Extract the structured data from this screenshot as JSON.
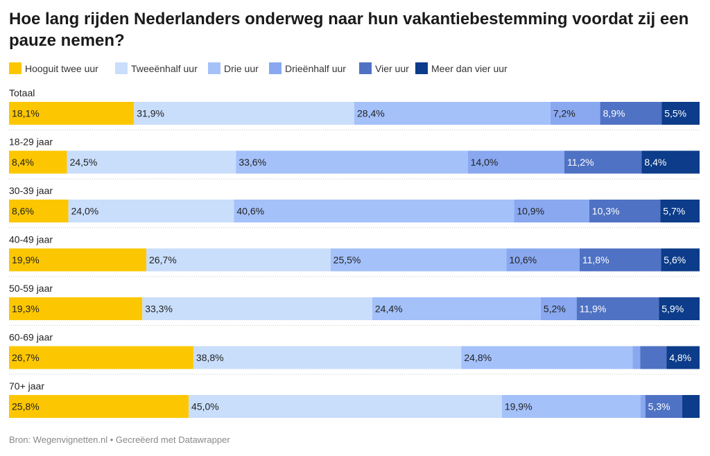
{
  "title": "Hoe lang rijden Nederlanders onderweg naar hun vakantiebestemming voordat zij een pauze nemen?",
  "footer": "Bron: Wegenvignetten.nl • Gecreëerd met Datawrapper",
  "chart_data": {
    "type": "bar",
    "orientation": "horizontal",
    "stacked": true,
    "normalized_100": true,
    "legend_position": "top",
    "categories": [
      "Totaal",
      "18-29 jaar",
      "30-39 jaar",
      "40-49 jaar",
      "50-59 jaar",
      "60-69 jaar",
      "70+ jaar"
    ],
    "series": [
      {
        "name": "Hooguit twee uur",
        "color": "#FCC700",
        "values": [
          18.1,
          8.4,
          8.6,
          19.9,
          19.3,
          26.7,
          25.8
        ],
        "labels": [
          "18,1%",
          "8,4%",
          "8,6%",
          "19,9%",
          "19,3%",
          "26,7%",
          "25,8%"
        ]
      },
      {
        "name": "Tweeënhalf uur",
        "color": "#C9DEFB",
        "values": [
          31.9,
          24.5,
          24.0,
          26.7,
          33.3,
          38.8,
          45.0
        ],
        "labels": [
          "31,9%",
          "24,5%",
          "24,0%",
          "26,7%",
          "33,3%",
          "38,8%",
          "45,0%"
        ]
      },
      {
        "name": "Drie uur",
        "color": "#A4C1FA",
        "values": [
          28.4,
          33.6,
          40.6,
          25.5,
          24.4,
          24.8,
          19.9
        ],
        "labels": [
          "28,4%",
          "33,6%",
          "40,6%",
          "25,5%",
          "24,4%",
          "24,8%",
          "19,9%"
        ]
      },
      {
        "name": "Drieënhalf uur",
        "color": "#89A8F0",
        "values": [
          7.2,
          14.0,
          10.9,
          10.6,
          5.2,
          1.1,
          0.7
        ],
        "labels": [
          "7,2%",
          "14,0%",
          "10,9%",
          "10,6%",
          "5,2%",
          "",
          ""
        ]
      },
      {
        "name": "Vier uur",
        "color": "#4F72C4",
        "values": [
          8.9,
          11.2,
          10.3,
          11.8,
          11.9,
          3.8,
          5.3
        ],
        "labels": [
          "8,9%",
          "11,2%",
          "10,3%",
          "11,8%",
          "11,9%",
          "",
          "5,3%"
        ]
      },
      {
        "name": "Meer dan vier uur",
        "color": "#0C3C8A",
        "values": [
          5.5,
          8.4,
          5.7,
          5.6,
          5.9,
          4.8,
          2.5
        ],
        "labels": [
          "5,5%",
          "8,4%",
          "5,7%",
          "5,6%",
          "5,9%",
          "4,8%",
          ""
        ]
      }
    ]
  }
}
